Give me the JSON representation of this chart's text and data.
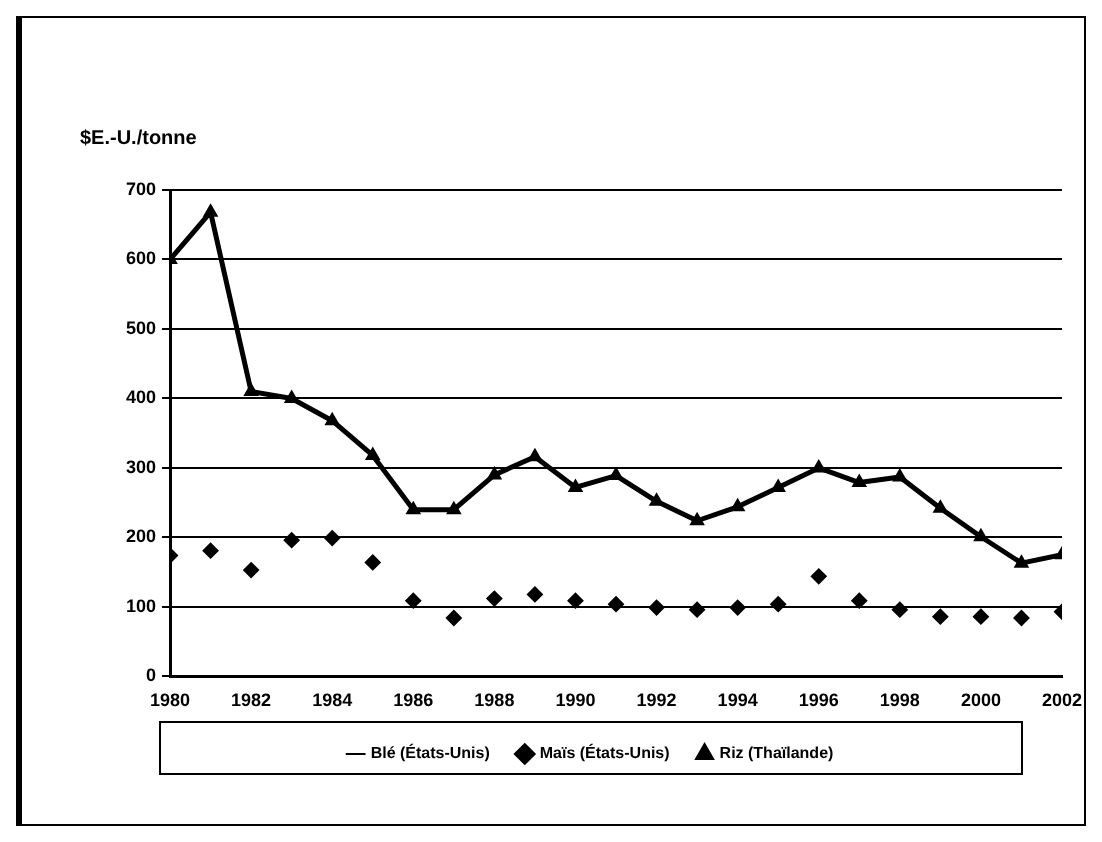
{
  "chart_data": {
    "type": "line",
    "ylabel": "$E.-U./tonne",
    "x": [
      1980,
      1981,
      1982,
      1983,
      1984,
      1985,
      1986,
      1987,
      1988,
      1989,
      1990,
      1991,
      1992,
      1993,
      1994,
      1995,
      1996,
      1997,
      1998,
      1999,
      2000,
      2001,
      2002
    ],
    "xlim": [
      1980,
      2002
    ],
    "xticks": [
      1980,
      1982,
      1984,
      1986,
      1988,
      1990,
      1992,
      1994,
      1996,
      1998,
      2000,
      2002
    ],
    "ylim": [
      0,
      700
    ],
    "yticks": [
      0,
      100,
      200,
      300,
      400,
      500,
      600,
      700
    ],
    "grid": "y",
    "legend": "bottom",
    "series": [
      {
        "name": "Blé (États-Unis)",
        "color": "#000000",
        "marker": "none",
        "values": [
          null,
          null,
          null,
          null,
          null,
          null,
          null,
          null,
          null,
          null,
          null,
          null,
          null,
          null,
          null,
          null,
          null,
          null,
          null,
          null,
          null,
          null,
          null
        ]
      },
      {
        "name": "Maïs (États-Unis)",
        "type": "scatter",
        "color": "#000000",
        "marker": "diamond",
        "values": [
          174,
          181,
          153,
          196,
          199,
          164,
          109,
          84,
          112,
          118,
          109,
          104,
          99,
          96,
          99,
          104,
          144,
          109,
          96,
          86,
          86,
          84,
          93
        ]
      },
      {
        "name": "Riz (Thaïlande)",
        "color": "#000000",
        "marker": "triangle",
        "values": [
          600,
          668,
          410,
          400,
          368,
          318,
          240,
          240,
          290,
          316,
          272,
          289,
          252,
          224,
          244,
          272,
          300,
          279,
          287,
          242,
          201,
          163,
          175
        ]
      }
    ]
  }
}
